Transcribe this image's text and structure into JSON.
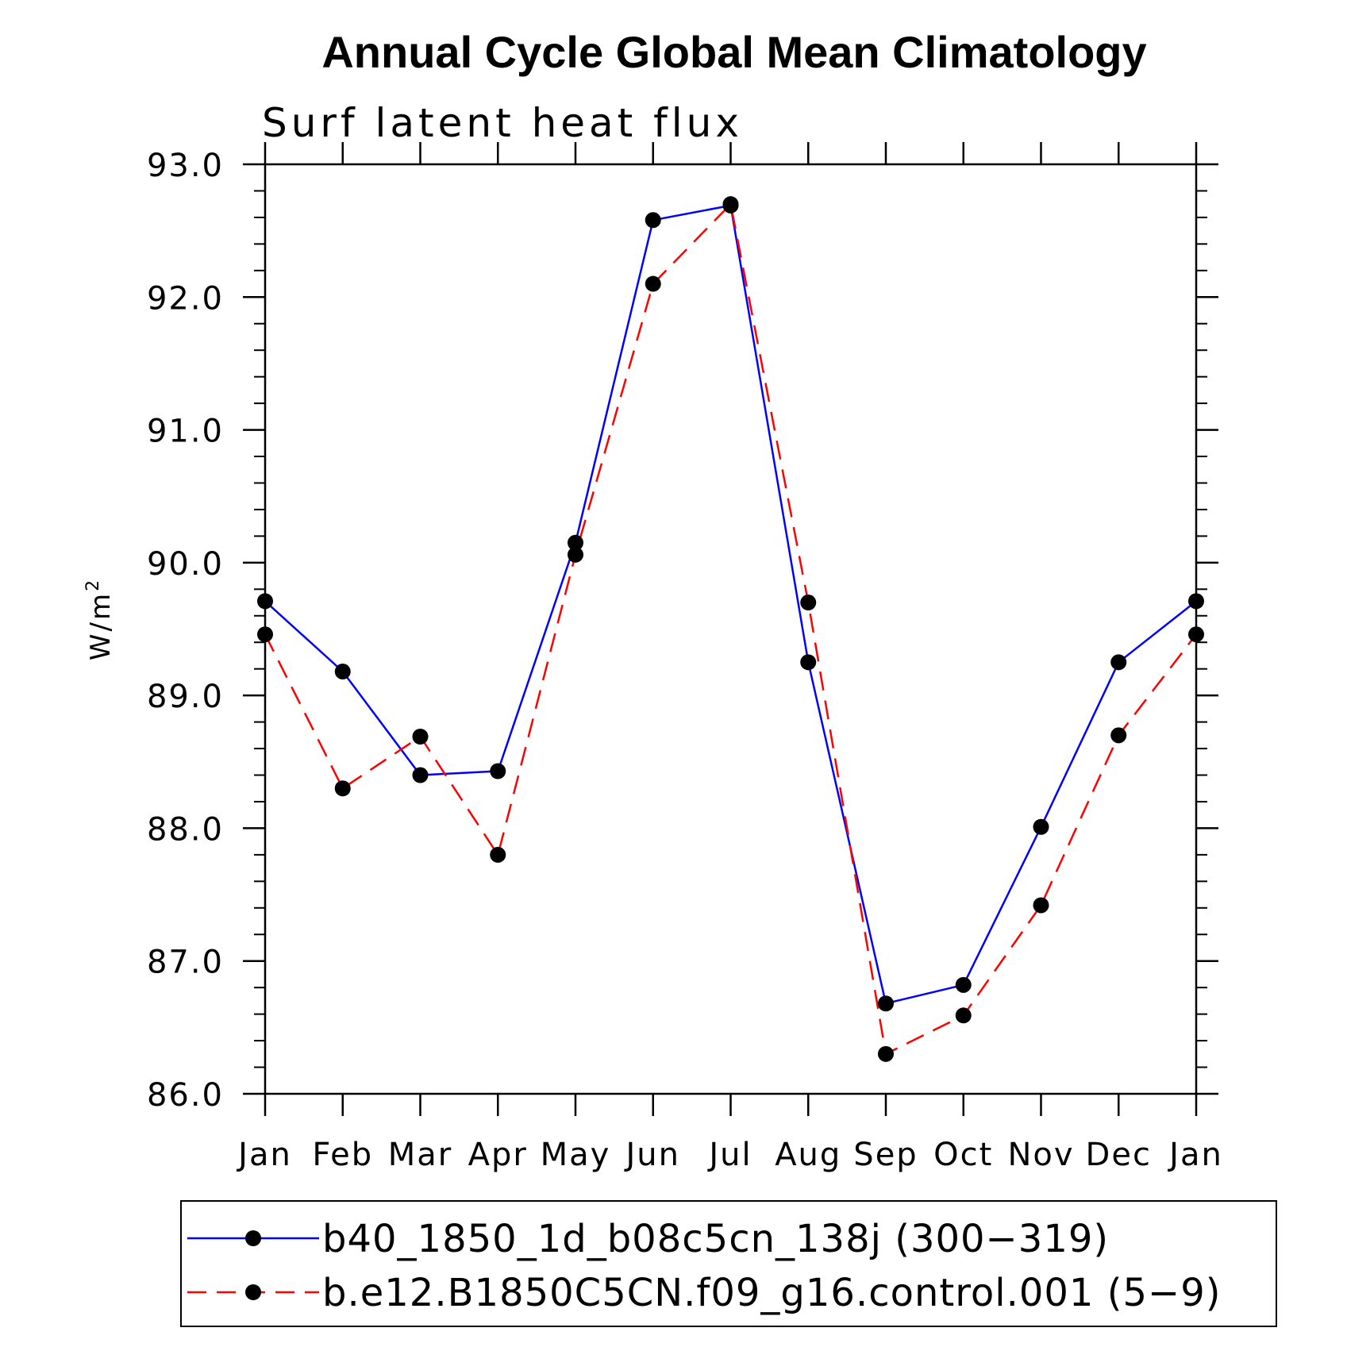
{
  "chart_data": {
    "type": "line",
    "title": "Annual Cycle Global Mean Climatology",
    "subtitle": "Surf latent heat flux",
    "ylabel": "W/m",
    "ylabel_sup": "2",
    "xlabel": "",
    "categories": [
      "Jan",
      "Feb",
      "Mar",
      "Apr",
      "May",
      "Jun",
      "Jul",
      "Aug",
      "Sep",
      "Oct",
      "Nov",
      "Dec",
      "Jan"
    ],
    "ylim": [
      86.0,
      93.0
    ],
    "yticks": [
      "86.0",
      "87.0",
      "88.0",
      "89.0",
      "90.0",
      "91.0",
      "92.0",
      "93.0"
    ],
    "ytick_values": [
      86,
      87,
      88,
      89,
      90,
      91,
      92,
      93
    ],
    "grid": false,
    "legend_position": "bottom",
    "series": [
      {
        "name": "b40_1850_1d_b08c5cn_138j (300−319)",
        "color": "#0000ff",
        "dash": "solid",
        "values": [
          89.71,
          89.18,
          88.4,
          88.43,
          90.15,
          92.58,
          92.69,
          89.25,
          86.68,
          86.82,
          88.01,
          89.25,
          89.71
        ]
      },
      {
        "name": "b.e12.B1850C5CN.f09_g16.control.001 (5−9)",
        "color": "#ff0000",
        "dash": "dashed",
        "values": [
          89.46,
          88.3,
          88.69,
          87.8,
          90.06,
          92.1,
          92.7,
          89.7,
          86.3,
          86.59,
          87.42,
          88.7,
          89.46
        ]
      }
    ]
  }
}
